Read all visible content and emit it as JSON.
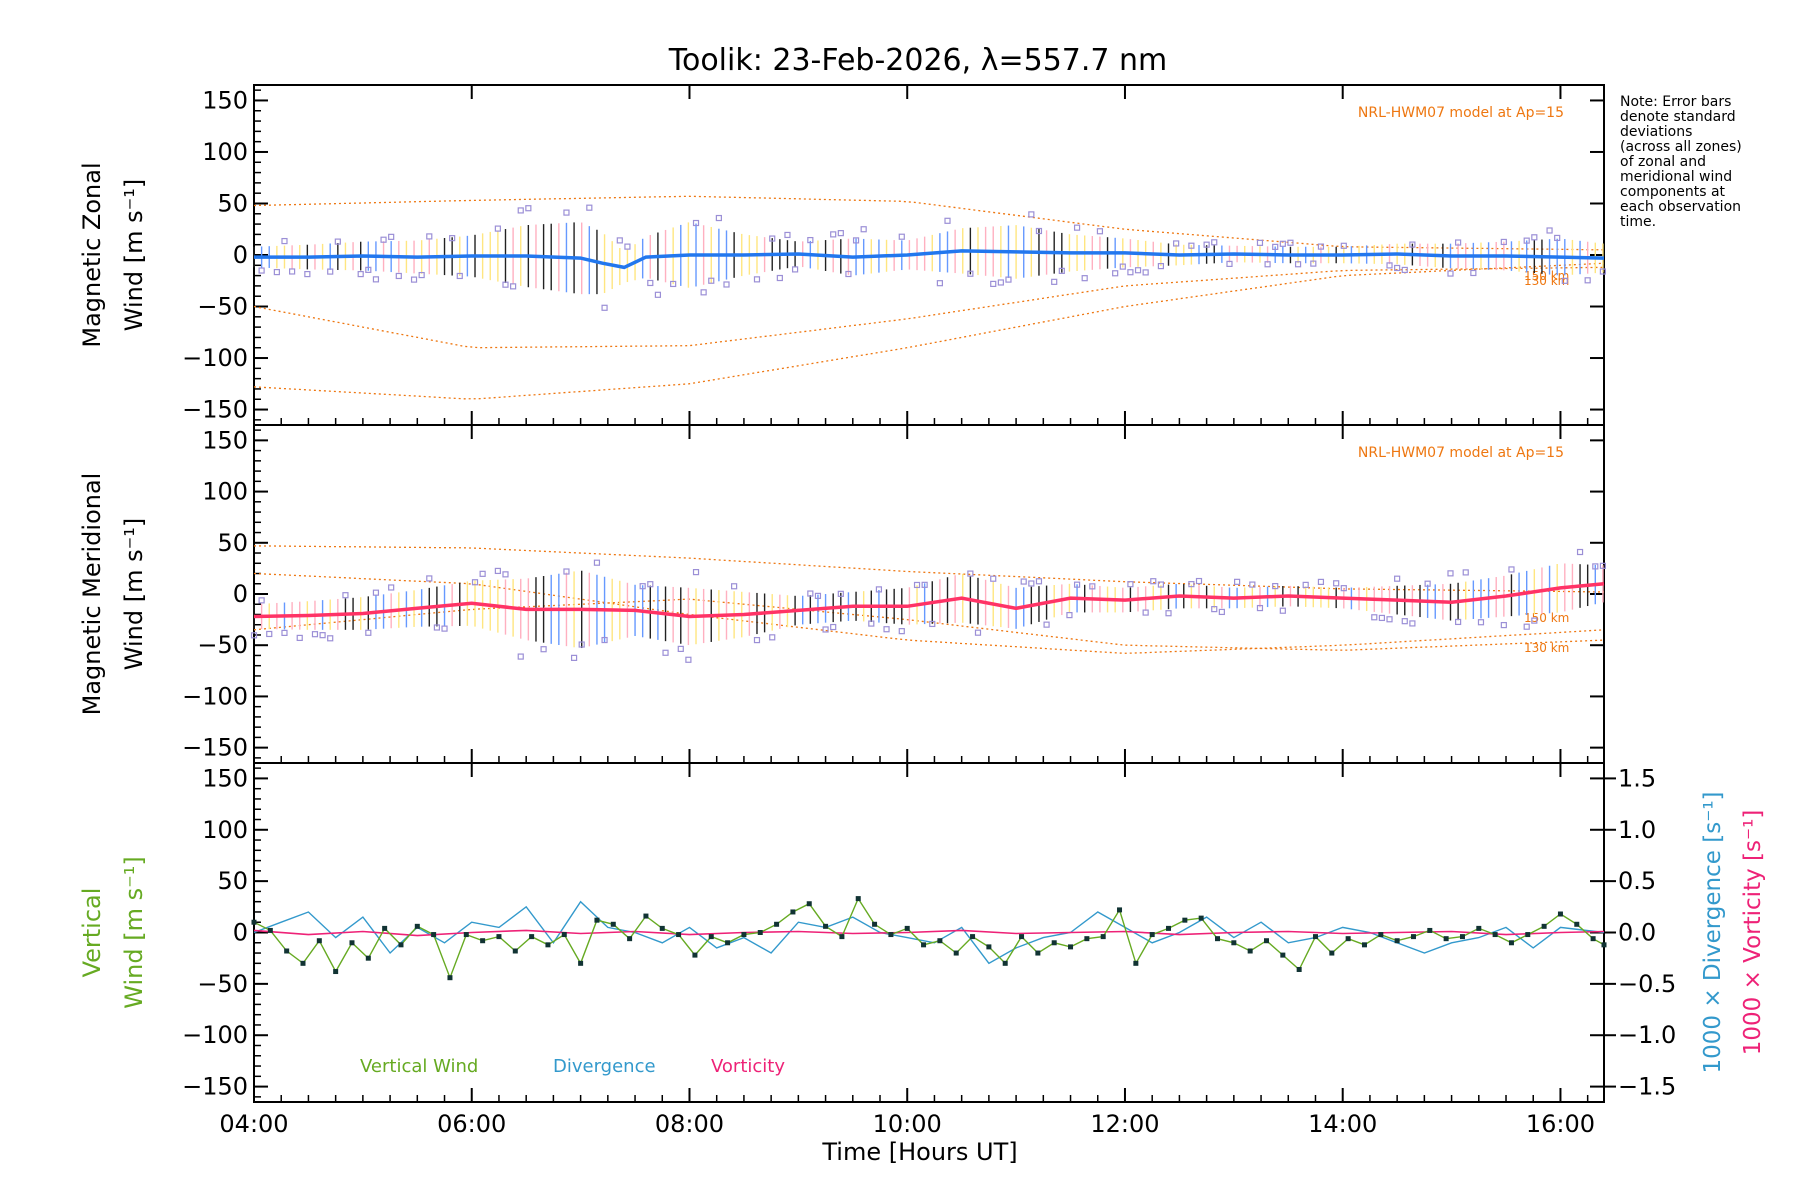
{
  "title": "Toolik: 23-Feb-2026, λ=557.7 nm",
  "note": [
    "Note: Error bars",
    "denote standard",
    "deviations",
    "(across all zones)",
    "of zonal and",
    "meridional wind",
    "components at",
    "each observation",
    "time."
  ],
  "colors": {
    "zonal": "#2277ee",
    "meridional": "#ff3366",
    "vertical": "#66aa22",
    "divergence": "#3399cc",
    "vorticity": "#ee2277",
    "model": "#ee7711",
    "scatter": "#9b8fd6",
    "axis": "#000000"
  },
  "chart_data": [
    {
      "type": "line",
      "id": "zonal",
      "ylabel_lines": [
        "Magnetic Zonal",
        "Wind [m s⁻¹]"
      ],
      "ylim": [
        -165,
        165
      ],
      "yticks": [
        -150,
        -100,
        -50,
        0,
        50,
        100,
        150
      ],
      "model_label": "NRL-HWM07 model at Ap=15",
      "model_curve_labels": [
        "150 km",
        "130 km"
      ],
      "x_hours": [
        4.0,
        4.5,
        5.0,
        5.5,
        6.0,
        6.5,
        7.0,
        7.2,
        7.4,
        7.6,
        8.0,
        8.5,
        9.0,
        9.5,
        10.0,
        10.5,
        11.0,
        11.5,
        12.0,
        12.5,
        13.0,
        13.5,
        14.0,
        14.5,
        15.0,
        15.5,
        16.0,
        16.4
      ],
      "values": [
        -2,
        -2,
        -1,
        -2,
        -1,
        -1,
        -3,
        -8,
        -12,
        -2,
        0,
        0,
        1,
        -2,
        0,
        4,
        3,
        2,
        2,
        0,
        1,
        0,
        0,
        1,
        -1,
        -1,
        -2,
        -3
      ],
      "spread": [
        10,
        12,
        14,
        16,
        20,
        30,
        35,
        30,
        15,
        20,
        32,
        20,
        12,
        18,
        14,
        22,
        26,
        18,
        14,
        10,
        8,
        8,
        8,
        10,
        12,
        14,
        18,
        14
      ],
      "model_series": [
        {
          "name": "model-a",
          "x": [
            4.0,
            6.0,
            8.0,
            10.0,
            12.0,
            14.0,
            16.4
          ],
          "values": [
            48,
            53,
            57,
            52,
            25,
            8,
            5
          ]
        },
        {
          "name": "model-b",
          "x": [
            4.0,
            6.0,
            8.0,
            10.0,
            12.0,
            14.0,
            16.4
          ],
          "values": [
            -50,
            -90,
            -88,
            -62,
            -30,
            -15,
            -12
          ]
        },
        {
          "name": "model-c",
          "x": [
            4.0,
            6.0,
            8.0,
            10.0,
            12.0,
            14.0,
            16.4
          ],
          "values": [
            -128,
            -140,
            -125,
            -90,
            -50,
            -20,
            -8
          ]
        }
      ]
    },
    {
      "type": "line",
      "id": "meridional",
      "ylabel_lines": [
        "Magnetic Meridional",
        "Wind [m s⁻¹]"
      ],
      "ylim": [
        -165,
        165
      ],
      "yticks": [
        -150,
        -100,
        -50,
        0,
        50,
        100,
        150
      ],
      "model_label": "NRL-HWM07 model at Ap=15",
      "model_curve_labels": [
        "150 km",
        "130 km"
      ],
      "x_hours": [
        4.0,
        4.5,
        5.0,
        5.5,
        6.0,
        6.5,
        7.0,
        7.5,
        8.0,
        8.5,
        9.0,
        9.5,
        10.0,
        10.5,
        11.0,
        11.5,
        12.0,
        12.5,
        13.0,
        13.5,
        14.0,
        14.5,
        15.0,
        15.5,
        16.0,
        16.4
      ],
      "values": [
        -22,
        -21,
        -19,
        -14,
        -9,
        -15,
        -15,
        -16,
        -22,
        -20,
        -16,
        -12,
        -12,
        -4,
        -14,
        -4,
        -6,
        -2,
        -4,
        -2,
        -4,
        -6,
        -8,
        -2,
        6,
        10
      ],
      "spread": [
        12,
        14,
        16,
        18,
        22,
        30,
        38,
        25,
        28,
        22,
        14,
        14,
        18,
        24,
        20,
        14,
        12,
        12,
        10,
        10,
        10,
        14,
        18,
        20,
        24,
        18
      ],
      "model_series": [
        {
          "name": "model-a",
          "x": [
            4.0,
            6.0,
            8.0,
            10.0,
            12.0,
            14.0,
            16.4
          ],
          "values": [
            47,
            45,
            35,
            22,
            12,
            5,
            2
          ]
        },
        {
          "name": "model-b",
          "x": [
            4.0,
            6.0,
            8.0,
            10.0,
            12.0,
            14.0,
            16.4
          ],
          "values": [
            -35,
            -15,
            -5,
            -25,
            -50,
            -55,
            -45
          ]
        },
        {
          "name": "model-c",
          "x": [
            4.0,
            6.0,
            8.0,
            10.0,
            12.0,
            14.0,
            16.4
          ],
          "values": [
            20,
            10,
            -20,
            -45,
            -58,
            -50,
            -35
          ]
        }
      ]
    },
    {
      "type": "line",
      "id": "vertical",
      "ylabel_lines": [
        "Vertical",
        "Wind [m s⁻¹]"
      ],
      "ylim": [
        -165,
        165
      ],
      "yticks": [
        -150,
        -100,
        -50,
        0,
        50,
        100,
        150
      ],
      "y2label_lines": [
        "1000 × Divergence [s⁻¹]",
        "1000 × Vorticity [s⁻¹]"
      ],
      "y2lim": [
        -1.65,
        1.65
      ],
      "y2ticks": [
        -1.5,
        -1.0,
        -0.5,
        0.0,
        0.5,
        1.0,
        1.5
      ],
      "y2ticklabels": [
        "−1.5",
        "−1.0",
        "−0.5",
        "0.0",
        "0.5",
        "1.0",
        "1.5"
      ],
      "legend": [
        "Vertical Wind",
        "Divergence",
        "Vorticity"
      ],
      "series": [
        {
          "name": "Vertical Wind",
          "x": [
            4.0,
            4.15,
            4.3,
            4.45,
            4.6,
            4.75,
            4.9,
            5.05,
            5.2,
            5.35,
            5.5,
            5.65,
            5.8,
            5.95,
            6.1,
            6.25,
            6.4,
            6.55,
            6.7,
            6.85,
            7.0,
            7.15,
            7.3,
            7.45,
            7.6,
            7.75,
            7.9,
            8.05,
            8.2,
            8.35,
            8.5,
            8.65,
            8.8,
            8.95,
            9.1,
            9.25,
            9.4,
            9.55,
            9.7,
            9.85,
            10.0,
            10.15,
            10.3,
            10.45,
            10.6,
            10.75,
            10.9,
            11.05,
            11.2,
            11.35,
            11.5,
            11.65,
            11.8,
            11.95,
            12.1,
            12.25,
            12.4,
            12.55,
            12.7,
            12.85,
            13.0,
            13.15,
            13.3,
            13.45,
            13.6,
            13.75,
            13.9,
            14.05,
            14.2,
            14.35,
            14.5,
            14.65,
            14.8,
            14.95,
            15.1,
            15.25,
            15.4,
            15.55,
            15.7,
            15.85,
            16.0,
            16.15,
            16.3,
            16.4
          ],
          "values": [
            10,
            2,
            -18,
            -30,
            -8,
            -38,
            -10,
            -25,
            4,
            -12,
            6,
            -2,
            -44,
            -2,
            -8,
            -4,
            -18,
            -4,
            -12,
            -2,
            -30,
            12,
            8,
            -6,
            16,
            4,
            -2,
            -22,
            -4,
            -10,
            -2,
            0,
            8,
            20,
            28,
            6,
            -4,
            33,
            8,
            -2,
            4,
            -12,
            -8,
            -20,
            -4,
            -14,
            -30,
            -4,
            -20,
            -10,
            -14,
            -6,
            -4,
            22,
            -30,
            -2,
            4,
            12,
            14,
            -6,
            -10,
            -18,
            -8,
            -22,
            -36,
            -4,
            -20,
            -6,
            -12,
            -2,
            -8,
            -4,
            2,
            -6,
            -4,
            4,
            -2,
            -10,
            -2,
            6,
            18,
            8,
            -6,
            -12
          ]
        },
        {
          "name": "Divergence",
          "axis": "right",
          "x": [
            4.0,
            4.25,
            4.5,
            4.75,
            5.0,
            5.25,
            5.5,
            5.75,
            6.0,
            6.25,
            6.5,
            6.75,
            7.0,
            7.25,
            7.5,
            7.75,
            8.0,
            8.25,
            8.5,
            8.75,
            9.0,
            9.25,
            9.5,
            9.75,
            10.0,
            10.25,
            10.5,
            10.75,
            11.0,
            11.25,
            11.5,
            11.75,
            12.0,
            12.25,
            12.5,
            12.75,
            13.0,
            13.25,
            13.5,
            13.75,
            14.0,
            14.25,
            14.5,
            14.75,
            15.0,
            15.25,
            15.5,
            15.75,
            16.0,
            16.4
          ],
          "values": [
            0.0,
            0.1,
            0.2,
            -0.05,
            0.15,
            -0.2,
            0.05,
            -0.1,
            0.1,
            0.05,
            0.25,
            -0.1,
            0.3,
            0.05,
            0.0,
            -0.1,
            0.05,
            -0.15,
            -0.05,
            -0.2,
            0.1,
            0.05,
            0.15,
            0.0,
            -0.05,
            -0.1,
            0.05,
            -0.3,
            -0.15,
            -0.05,
            0.0,
            0.2,
            0.05,
            -0.1,
            0.0,
            0.15,
            -0.05,
            0.1,
            -0.1,
            -0.05,
            0.05,
            0.0,
            -0.1,
            -0.2,
            -0.1,
            -0.05,
            0.05,
            -0.15,
            0.05,
            0.0
          ]
        },
        {
          "name": "Vorticity",
          "axis": "right",
          "x": [
            4.0,
            4.5,
            5.0,
            5.5,
            6.0,
            6.5,
            7.0,
            7.5,
            8.0,
            8.5,
            9.0,
            9.5,
            10.0,
            10.5,
            11.0,
            11.5,
            12.0,
            12.5,
            13.0,
            13.5,
            14.0,
            14.5,
            15.0,
            15.5,
            16.0,
            16.4
          ],
          "values": [
            0.02,
            -0.02,
            0.01,
            -0.03,
            0.0,
            0.02,
            -0.01,
            0.01,
            -0.02,
            0.0,
            0.01,
            -0.01,
            0.0,
            0.02,
            -0.01,
            0.0,
            0.01,
            -0.02,
            0.0,
            0.01,
            -0.01,
            0.0,
            0.01,
            -0.02,
            0.0,
            0.01
          ]
        }
      ]
    }
  ],
  "xaxis": {
    "label": "Time [Hours UT]",
    "xlim": [
      4.0,
      16.4
    ],
    "ticks": [
      4,
      6,
      8,
      10,
      12,
      14,
      16
    ],
    "ticklabels": [
      "04:00",
      "06:00",
      "08:00",
      "10:00",
      "12:00",
      "14:00",
      "16:00"
    ]
  }
}
